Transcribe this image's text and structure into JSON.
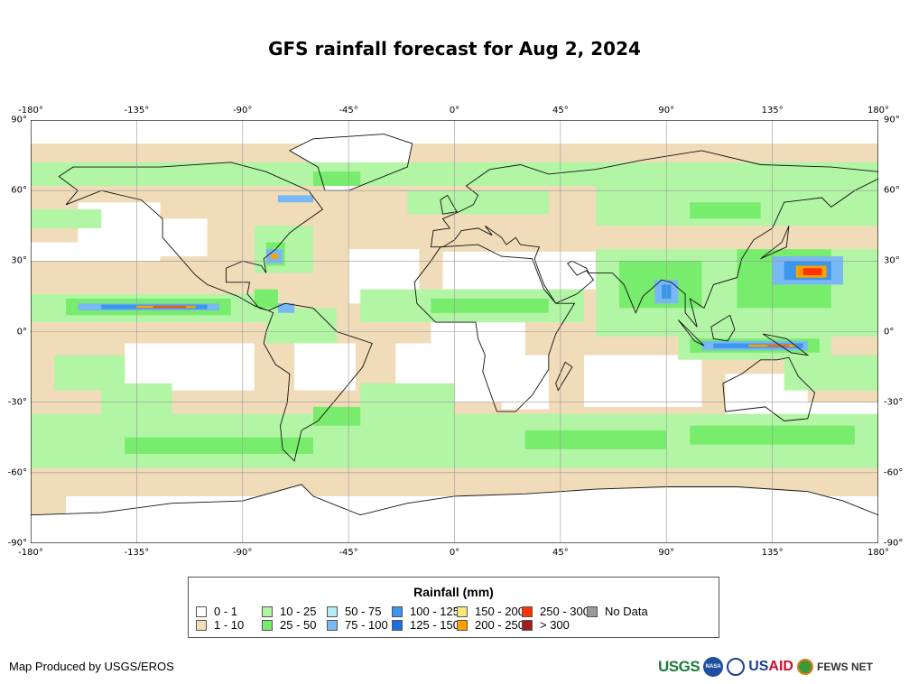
{
  "title": "GFS rainfall forecast for Aug 2, 2024",
  "axes": {
    "lon_ticks": [
      "-180°",
      "-135°",
      "-90°",
      "-45°",
      "0°",
      "45°",
      "90°",
      "135°",
      "180°"
    ],
    "lat_ticks": [
      "90°",
      "60°",
      "30°",
      "0°",
      "-30°",
      "-60°",
      "-90°"
    ]
  },
  "legend": {
    "title": "Rainfall (mm)",
    "items": [
      {
        "label": "0 - 1",
        "color": "#ffffff"
      },
      {
        "label": "1 - 10",
        "color": "#f0dcb9"
      },
      {
        "label": "10 - 25",
        "color": "#b2f5a5"
      },
      {
        "label": "25 - 50",
        "color": "#78ec6c"
      },
      {
        "label": "50 - 75",
        "color": "#b4eef5"
      },
      {
        "label": "75 - 100",
        "color": "#78b9f5"
      },
      {
        "label": "100 - 125",
        "color": "#3c96ec"
      },
      {
        "label": "125 - 150",
        "color": "#1e6ee0"
      },
      {
        "label": "150 - 200",
        "color": "#ffe678"
      },
      {
        "label": "200 - 250",
        "color": "#ffa000"
      },
      {
        "label": "250 - 300",
        "color": "#ff3200"
      },
      {
        "label": "> 300",
        "color": "#a01e1e"
      },
      {
        "label": "No Data",
        "color": "#999999"
      }
    ]
  },
  "footer": {
    "credit": "Map Produced by USGS/EROS"
  },
  "logos": {
    "usgs": "USGS",
    "nasa": "NASA",
    "usaid_a": "US",
    "usaid_b": "AID",
    "fews": "FEWS NET"
  }
}
